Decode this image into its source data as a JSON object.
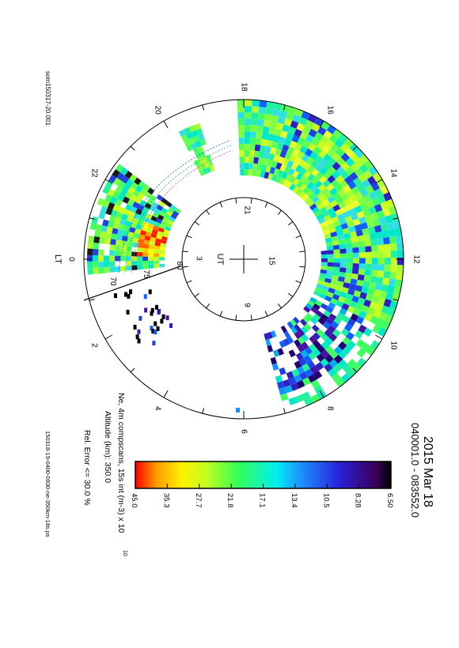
{
  "left_label": "som150317-20.001",
  "bottom_file": "150318-19-0400-0830-ne-350km-18s.ps",
  "title": "2015 Mar 18",
  "time_range": "040001.0 - 083552.0",
  "description": "Ne, 4m compscans, 15s int (m-3) x 10",
  "exponent": "10",
  "altitude": "Altitude (km): 350.0",
  "rel_error": "Rel. Error <= 30.0 %",
  "lt_label": "LT",
  "ut_label": "UT",
  "chart_data": {
    "type": "heatmap",
    "projection": "polar",
    "colorbar_ticks": [
      "6.50",
      "8.28",
      "10.5",
      "13.4",
      "17.1",
      "21.8",
      "27.7",
      "35.3",
      "45.0"
    ],
    "lt_ticks": [
      "0",
      "2",
      "4",
      "6",
      "8",
      "10",
      "12",
      "14",
      "16",
      "18",
      "20",
      "22"
    ],
    "ut_ticks": [
      "3",
      "9",
      "15",
      "21"
    ],
    "lat_ticks": [
      "70",
      "75",
      "80"
    ]
  }
}
